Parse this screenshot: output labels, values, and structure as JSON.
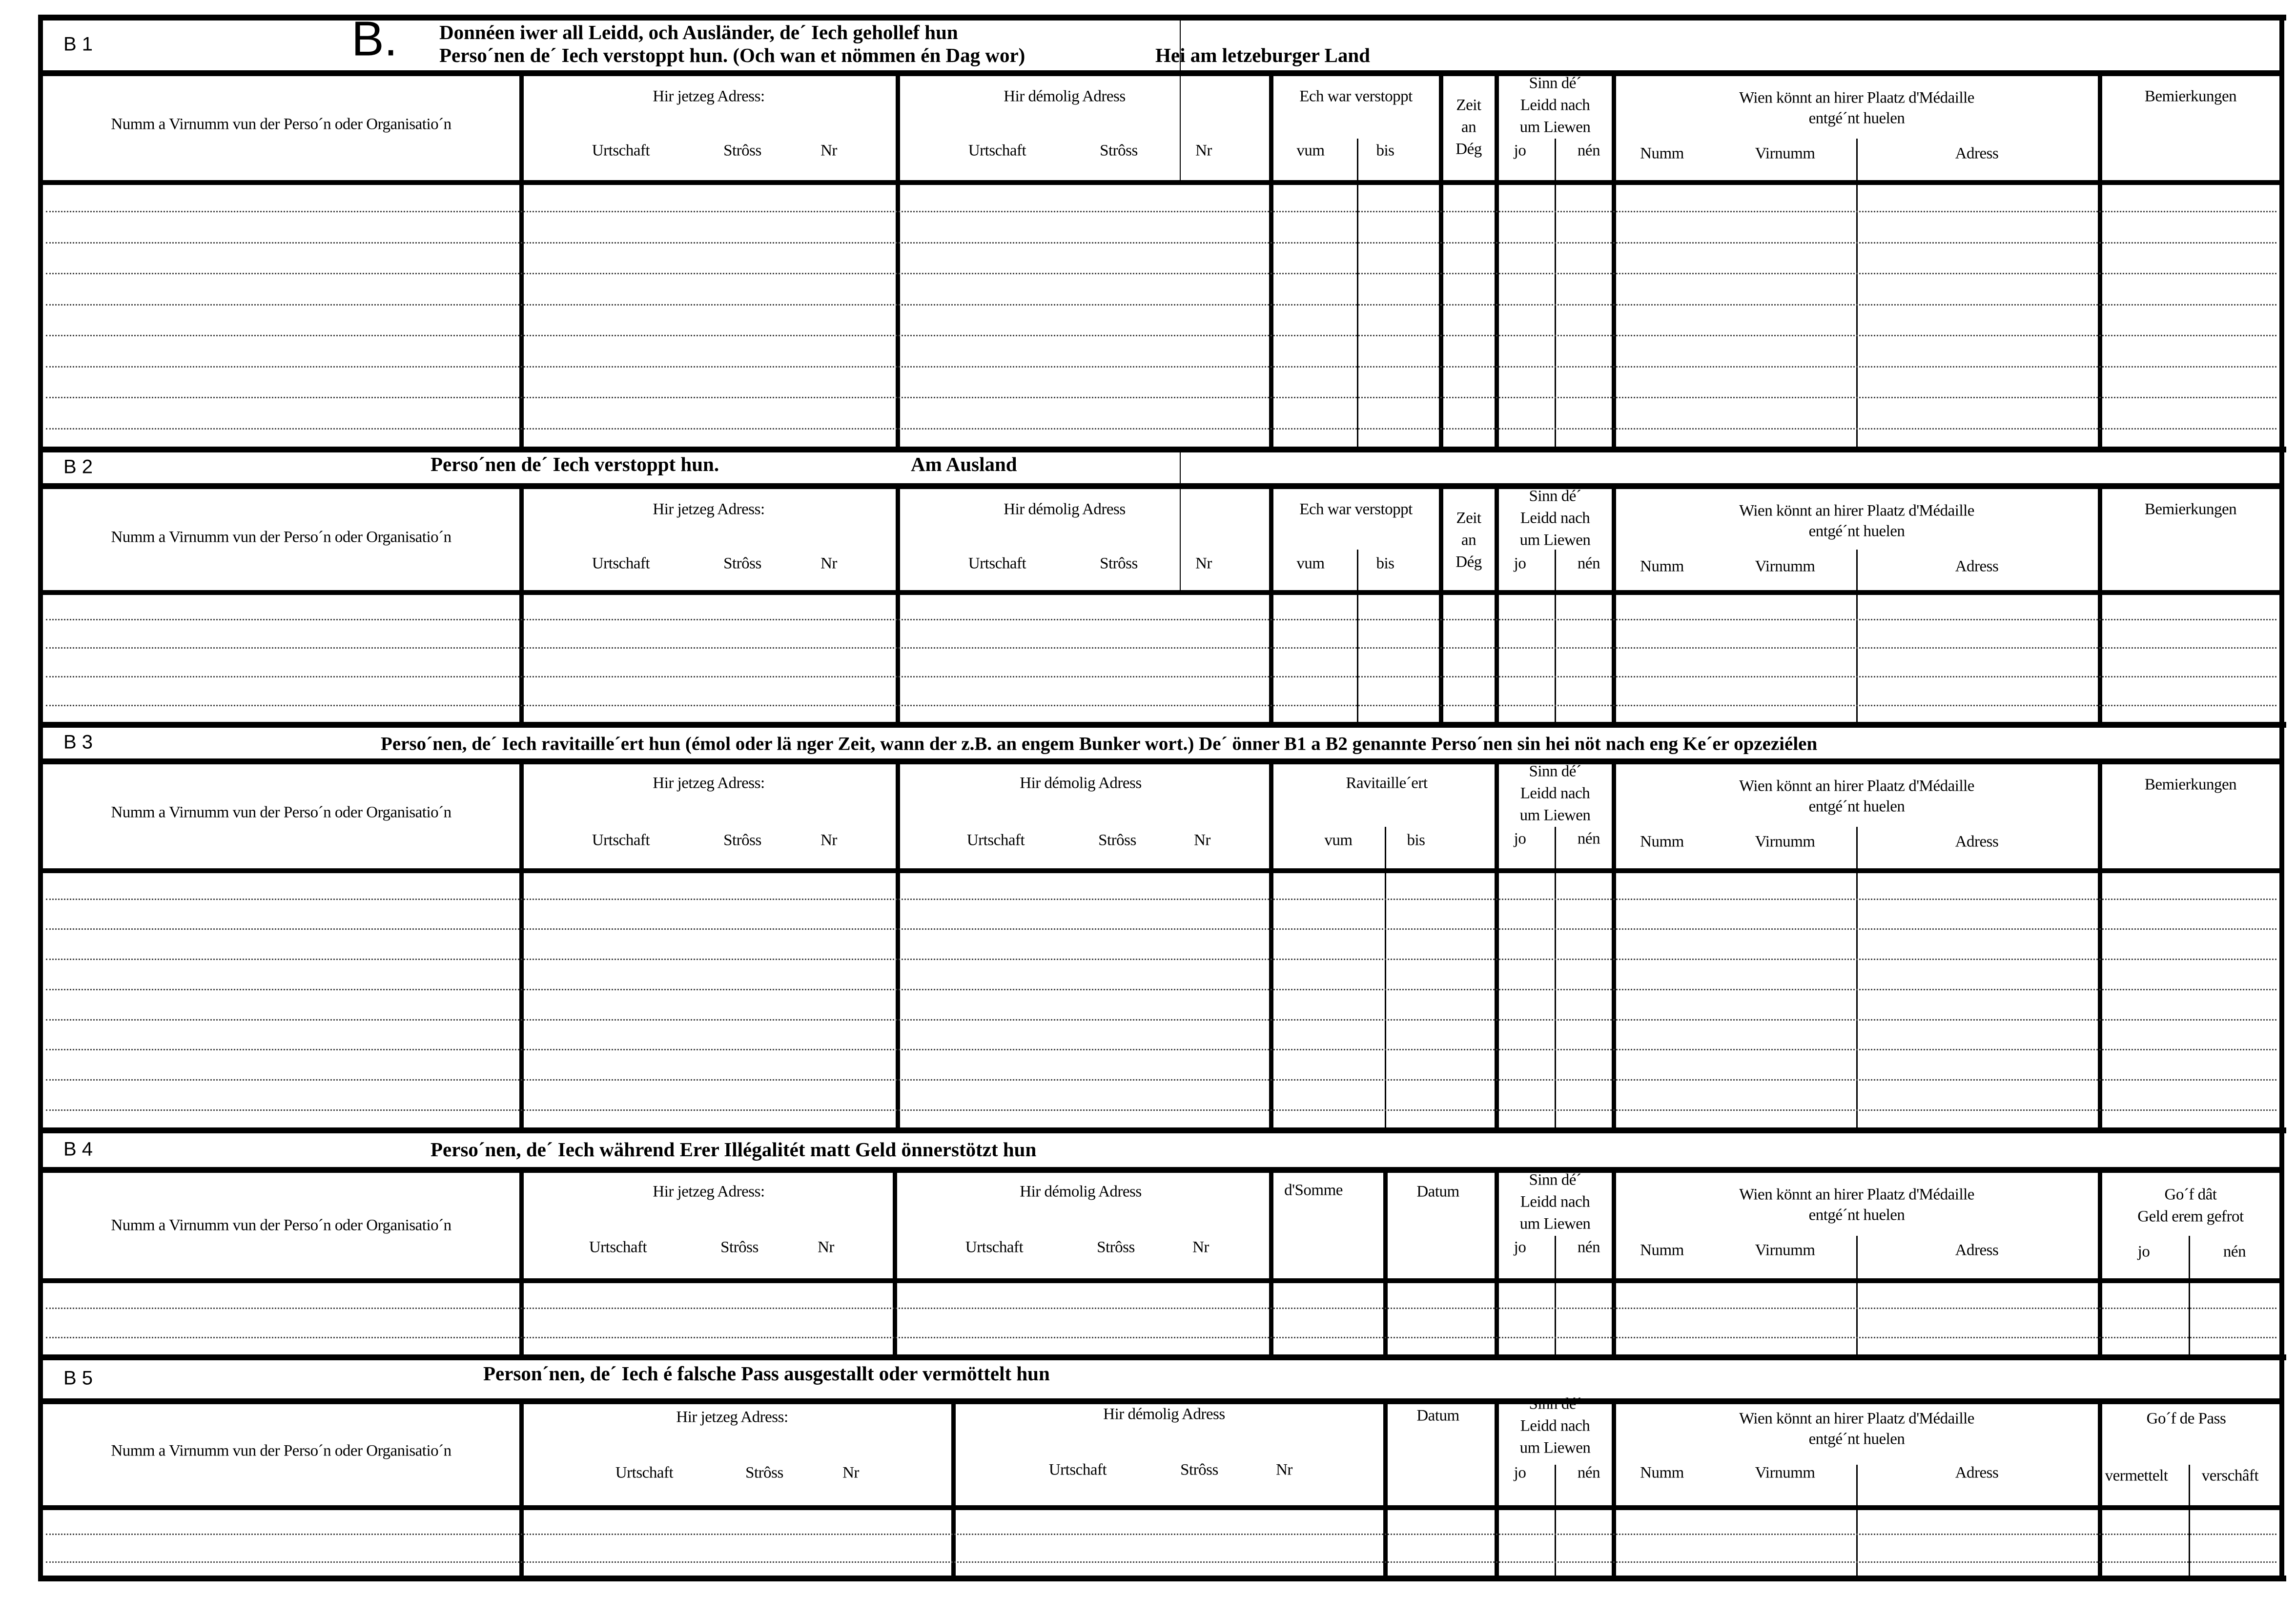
{
  "sections": [
    {
      "id": "B 1",
      "letter": "B.",
      "title_line1": "Donnéen iwer all Leidd, och Ausländer, de´ Iech gehollef hun",
      "title_line2": "Perso´nen de´ Iech verstoppt hun. (Och wan et nömmen én Dag wor)",
      "title_right": "Hei am letzeburger Land",
      "header": {
        "name_col": "Numm a Virnumm vun der Perso´n oder Organisatio´n",
        "current_address": "Hir jetzeg Adress:",
        "cur_town": "Urtschaft",
        "cur_street": "Strôss",
        "cur_nr": "Nr",
        "former_address": "Hir démolig Adress",
        "old_town": "Urtschaft",
        "old_street": "Strôss",
        "old_nr": "Nr",
        "hidden": "Ech war verstoppt",
        "from": "vum",
        "to": "bis",
        "time1": "Zeit",
        "time2": "an",
        "time3": "Dég",
        "danger1": "Sinn dé´",
        "danger2": "Leidd nach",
        "danger3": "um Liewen",
        "yes": "jo",
        "no": "nén",
        "medal1": "Wien könnt an hirer Plaatz d'Médaille",
        "medal2": "entgé´nt huelen",
        "m_name": "Numm",
        "m_firstname": "Virnumm",
        "m_address": "Adress",
        "remarks": "Bemierkungen"
      }
    },
    {
      "id": "B 2",
      "title": "Perso´nen de´ Iech verstoppt hun.",
      "title_right": "Am Ausland",
      "header": {
        "name_col": "Numm a Virnumm vun der Perso´n oder Organisatio´n",
        "current_address": "Hir jetzeg Adress:",
        "cur_town": "Urtschaft",
        "cur_street": "Strôss",
        "cur_nr": "Nr",
        "former_address": "Hir démolig Adress",
        "old_town": "Urtschaft",
        "old_street": "Strôss",
        "old_nr": "Nr",
        "hidden": "Ech war verstoppt",
        "from": "vum",
        "to": "bis",
        "time1": "Zeit",
        "time2": "an",
        "time3": "Dég",
        "danger1": "Sinn dé´",
        "danger2": "Leidd nach",
        "danger3": "um Liewen",
        "yes": "jo",
        "no": "nén",
        "medal1": "Wien könnt an hirer Plaatz d'Médaille",
        "medal2": "entgé´nt huelen",
        "m_name": "Numm",
        "m_firstname": "Virnumm",
        "m_address": "Adress",
        "remarks": "Bemierkungen"
      }
    },
    {
      "id": "B 3",
      "title": "Perso´nen, de´ Iech ravitaille´ert hun (émol oder lä nger Zeit, wann der z.B. an engem Bunker wort.)  De´ önner B1 a B2 genannte Perso´nen sin hei nöt nach eng Ke´er opzeziélen",
      "header": {
        "name_col": "Numm a Virnumm vun der Perso´n oder Organisatio´n",
        "current_address": "Hir jetzeg Adress:",
        "cur_town": "Urtschaft",
        "cur_street": "Strôss",
        "cur_nr": "Nr",
        "former_address": "Hir démolig Adress",
        "old_town": "Urtschaft",
        "old_street": "Strôss",
        "old_nr": "Nr",
        "supplied": "Ravitaille´ert",
        "from": "vum",
        "to": "bis",
        "danger1": "Sinn dé´",
        "danger2": "Leidd nach",
        "danger3": "um Liewen",
        "yes": "jo",
        "no": "nén",
        "medal1": "Wien könnt an hirer Plaatz d'Médaille",
        "medal2": "entgé´nt huelen",
        "m_name": "Numm",
        "m_firstname": "Virnumm",
        "m_address": "Adress",
        "remarks": "Bemierkungen"
      }
    },
    {
      "id": "B 4",
      "title": "Perso´nen, de´ Iech während Erer Illégalitét matt Geld önnerstötzt hun",
      "header": {
        "name_col": "Numm a Virnumm vun der Perso´n oder Organisatio´n",
        "current_address": "Hir jetzeg Adress:",
        "cur_town": "Urtschaft",
        "cur_street": "Strôss",
        "cur_nr": "Nr",
        "former_address": "Hir démolig Adress",
        "old_town": "Urtschaft",
        "old_street": "Strôss",
        "old_nr": "Nr",
        "sum": "d'Somme",
        "date": "Datum",
        "danger1": "Sinn dé´",
        "danger2": "Leidd nach",
        "danger3": "um Liewen",
        "yes": "jo",
        "no": "nén",
        "medal1": "Wien könnt an hirer Plaatz d'Médaille",
        "medal2": "entgé´nt huelen",
        "m_name": "Numm",
        "m_firstname": "Virnumm",
        "m_address": "Adress",
        "repay1": "Go´f dât",
        "repay2": "Geld erem gefrot",
        "repay_yes": "jo",
        "repay_no": "nén"
      }
    },
    {
      "id": "B 5",
      "title": "Person´nen, de´ Iech é falsche Pass ausgestallt oder  vermöttelt hun",
      "header": {
        "name_col": "Numm a Virnumm vun der Perso´n oder Organisatio´n",
        "current_address": "Hir jetzeg Adress:",
        "cur_town": "Urtschaft",
        "cur_street": "Strôss",
        "cur_nr": "Nr",
        "former_address": "Hir démolig Adress",
        "old_town": "Urtschaft",
        "old_street": "Strôss",
        "old_nr": "Nr",
        "date": "Datum",
        "danger1": "Sinn dé´",
        "danger2": "Leidd nach",
        "danger3": "um Liewen",
        "yes": "jo",
        "no": "nén",
        "medal1": "Wien könnt an hirer Plaatz d'Médaille",
        "medal2": "entgé´nt huelen",
        "m_name": "Numm",
        "m_firstname": "Virnumm",
        "m_address": "Adress",
        "pass": "Go´f de Pass",
        "mediated": "vermettelt",
        "procured": "verschâft"
      }
    }
  ]
}
